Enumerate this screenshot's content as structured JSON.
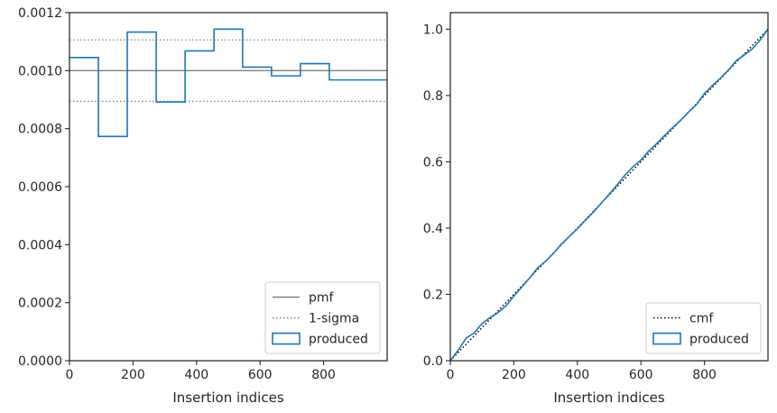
{
  "chart_data": [
    {
      "type": "line",
      "xlabel": "Insertion indices",
      "ylabel": "",
      "xlim": [
        0,
        1000
      ],
      "ylim": [
        0,
        0.0012
      ],
      "xticks": [
        0,
        200,
        400,
        600,
        800
      ],
      "xtick_labels": [
        "0",
        "200",
        "400",
        "600",
        "800"
      ],
      "yticks": [
        0,
        0.0002,
        0.0004,
        0.0006,
        0.0008,
        0.001,
        0.0012
      ],
      "ytick_labels": [
        "0.0000",
        "0.0002",
        "0.0004",
        "0.0006",
        "0.0008",
        "0.0010",
        "0.0012"
      ],
      "legend_position": "bottom-right",
      "grid": false,
      "reference_lines": [
        {
          "name": "pmf",
          "y": 0.001,
          "style": "solid",
          "color": "#808080"
        },
        {
          "name": "1-sigma",
          "y": 0.001106,
          "style": "dotted",
          "color": "#808080"
        },
        {
          "name": "1-sigma",
          "y": 0.000894,
          "style": "dotted",
          "color": "#808080"
        }
      ],
      "series": [
        {
          "name": "produced",
          "style": "step",
          "color": "#1f77b4",
          "bin_edges": [
            0,
            91,
            182,
            273,
            364,
            455,
            545,
            636,
            727,
            818,
            1000
          ],
          "values": [
            0.001045,
            0.000773,
            0.001133,
            0.000892,
            0.001068,
            0.001143,
            0.001012,
            0.000982,
            0.001024,
            0.000968
          ]
        }
      ],
      "legend": [
        {
          "label": "pmf",
          "kind": "line-solid",
          "color": "#808080"
        },
        {
          "label": "1-sigma",
          "kind": "line-dotted",
          "color": "#808080"
        },
        {
          "label": "produced",
          "kind": "patch",
          "color": "#1f77b4"
        }
      ]
    },
    {
      "type": "line",
      "xlabel": "Insertion indices",
      "ylabel": "",
      "xlim": [
        0,
        1000
      ],
      "ylim": [
        0,
        1.05
      ],
      "xticks": [
        0,
        200,
        400,
        600,
        800
      ],
      "xtick_labels": [
        "0",
        "200",
        "400",
        "600",
        "800"
      ],
      "yticks": [
        0,
        0.2,
        0.4,
        0.6,
        0.8,
        1.0
      ],
      "ytick_labels": [
        "0.0",
        "0.2",
        "0.4",
        "0.6",
        "0.8",
        "1.0"
      ],
      "legend_position": "bottom-right",
      "grid": false,
      "series": [
        {
          "name": "cmf",
          "style": "dotted",
          "color": "#000000",
          "x": [
            0,
            1000
          ],
          "y": [
            0,
            1.0
          ]
        },
        {
          "name": "produced",
          "style": "solid",
          "color": "#1f77b4",
          "x": [
            0,
            25,
            50,
            75,
            100,
            125,
            150,
            175,
            200,
            225,
            250,
            275,
            300,
            325,
            350,
            375,
            400,
            425,
            450,
            475,
            500,
            525,
            550,
            575,
            600,
            625,
            650,
            675,
            700,
            725,
            750,
            775,
            800,
            825,
            850,
            875,
            900,
            925,
            950,
            975,
            1000
          ],
          "y": [
            0,
            0.032,
            0.068,
            0.084,
            0.112,
            0.13,
            0.145,
            0.165,
            0.195,
            0.222,
            0.25,
            0.28,
            0.3,
            0.324,
            0.352,
            0.375,
            0.398,
            0.423,
            0.448,
            0.475,
            0.502,
            0.53,
            0.56,
            0.585,
            0.605,
            0.633,
            0.655,
            0.68,
            0.703,
            0.725,
            0.75,
            0.773,
            0.806,
            0.83,
            0.852,
            0.876,
            0.905,
            0.922,
            0.94,
            0.967,
            1.0
          ]
        }
      ],
      "legend": [
        {
          "label": "cmf",
          "kind": "line-dotted",
          "color": "#000000"
        },
        {
          "label": "produced",
          "kind": "patch",
          "color": "#1f77b4"
        }
      ]
    }
  ]
}
